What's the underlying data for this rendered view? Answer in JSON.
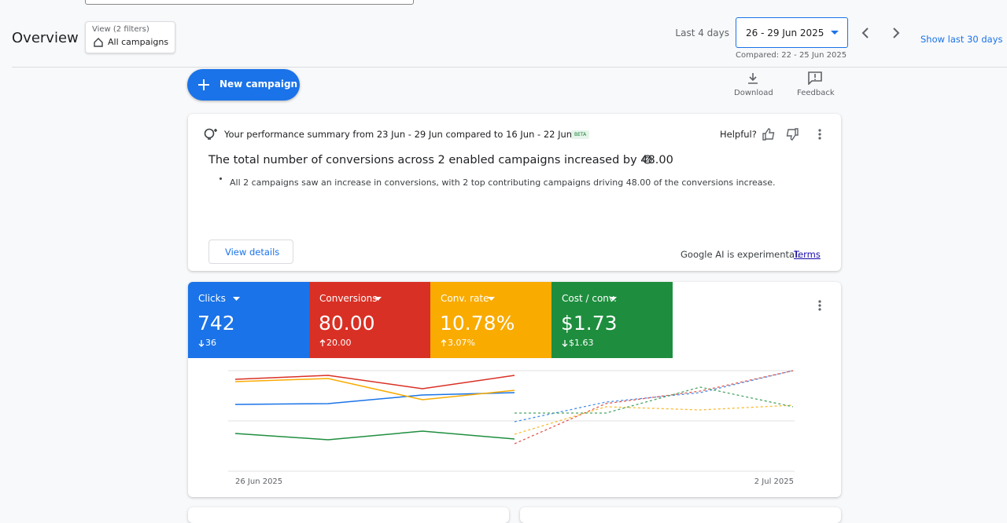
{
  "header": {
    "title": "Overview",
    "view_filters": "View (2 filters)",
    "view_name": "All campaigns",
    "date_preset": "Last 4 days",
    "date_range": "26 - 29 Jun 2025",
    "compared": "Compared: 22 - 25 Jun 2025",
    "show_last": "Show last 30 days"
  },
  "toolbar": {
    "new_campaign": "New campaign",
    "download": "Download",
    "feedback": "Feedback"
  },
  "summary": {
    "title": "Your performance summary from 23 Jun - 29 Jun compared to 16 Jun - 22 Jun",
    "badge": "BETA",
    "helpful": "Helpful?",
    "headline": "The total number of conversions across 2 enabled campaigns increased by 48.00",
    "bullets": [
      "All 2 campaigns saw an increase in conversions, with 2 top contributing campaigns driving 48.00 of the conversions increase."
    ],
    "view_details": "View details",
    "disclaimer": "Google AI is experimental.",
    "terms": "Terms"
  },
  "scorecards": [
    {
      "name": "Clicks",
      "value": "742",
      "change": "36",
      "color": "#1a73e8"
    },
    {
      "name": "Conversions",
      "value": "80.00",
      "change": "20.00",
      "color": "#d93025"
    },
    {
      "name": "Conv. rate",
      "value": "10.78%",
      "change": "3.07%",
      "color": "#f9ab00"
    },
    {
      "name": "Cost / conv.",
      "value": "$1.73",
      "change": "$1.63",
      "color": "#1e8e3e"
    }
  ],
  "chart": {
    "x_start": "26 Jun 2025",
    "x_end": "2 Jul 2025"
  }
}
